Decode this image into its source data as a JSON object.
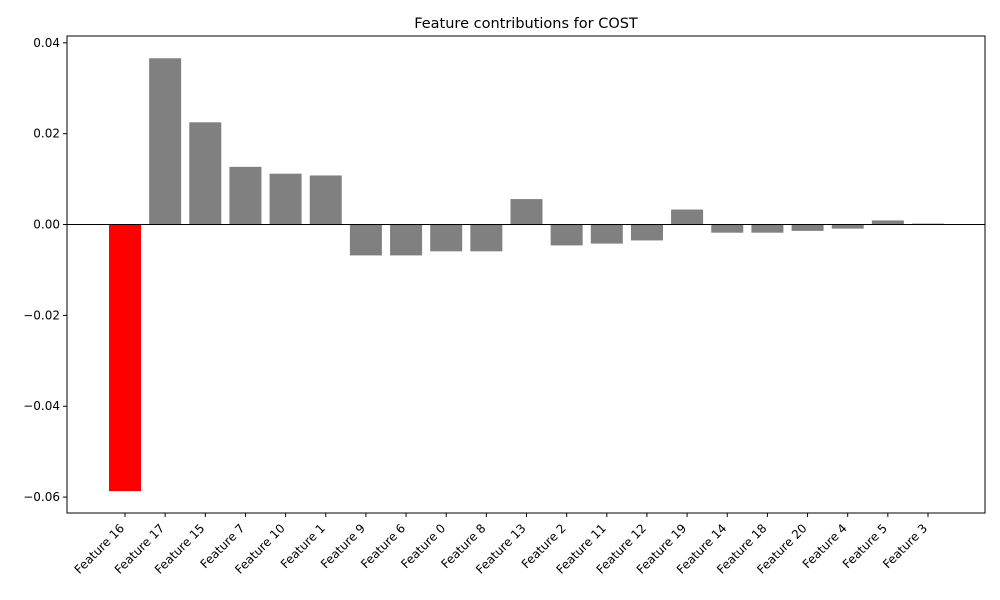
{
  "chart_data": {
    "type": "bar",
    "title": "Feature contributions for COST",
    "xlabel": "",
    "ylabel": "",
    "categories": [
      "Feature 16",
      "Feature 17",
      "Feature 15",
      "Feature 7",
      "Feature 10",
      "Feature 1",
      "Feature 9",
      "Feature 6",
      "Feature 0",
      "Feature 8",
      "Feature 13",
      "Feature 2",
      "Feature 11",
      "Feature 12",
      "Feature 19",
      "Feature 14",
      "Feature 18",
      "Feature 20",
      "Feature 4",
      "Feature 5",
      "Feature 3"
    ],
    "values": [
      -0.0587,
      0.0366,
      0.0225,
      0.0127,
      0.0112,
      0.0108,
      -0.0068,
      -0.0068,
      -0.0059,
      -0.0059,
      0.0056,
      -0.0046,
      -0.0042,
      -0.0035,
      0.0033,
      -0.0018,
      -0.0018,
      -0.0014,
      -0.0009,
      0.0009,
      0.0002
    ],
    "bar_colors": [
      "#ff0000",
      "#808080",
      "#808080",
      "#808080",
      "#808080",
      "#808080",
      "#808080",
      "#808080",
      "#808080",
      "#808080",
      "#808080",
      "#808080",
      "#808080",
      "#808080",
      "#808080",
      "#808080",
      "#808080",
      "#808080",
      "#808080",
      "#808080",
      "#808080"
    ],
    "ylim": [
      -0.0635,
      0.0415
    ],
    "yticks": [
      -0.06,
      -0.04,
      -0.02,
      0.0,
      0.02,
      0.04
    ],
    "ytick_labels": [
      "−0.06",
      "−0.04",
      "−0.02",
      "0.00",
      "0.02",
      "0.04"
    ],
    "zero_line": true,
    "grid": false,
    "legend": "none"
  }
}
